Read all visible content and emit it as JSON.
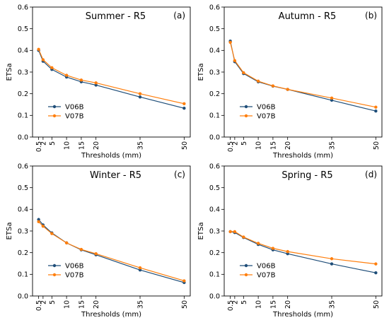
{
  "colors": {
    "V06B": "#1f4e79",
    "V07B": "#ff7f0e",
    "axes": "#000000",
    "background": "#ffffff"
  },
  "chart_data": [
    {
      "type": "line",
      "title": "Summer - R5",
      "tag": "(a)",
      "xlabel": "Thresholds (mm)",
      "ylabel": "ETSa",
      "x": [
        0.5,
        2,
        5,
        10,
        15,
        20,
        35,
        50
      ],
      "xticks": [
        "0.5",
        "2",
        "5",
        "10",
        "15",
        "20",
        "35",
        "50"
      ],
      "ylim": [
        0,
        0.6
      ],
      "yticks": [
        "0.0",
        "0.1",
        "0.2",
        "0.3",
        "0.4",
        "0.5",
        "0.6"
      ],
      "grid": false,
      "legend": "lower-left",
      "series": [
        {
          "name": "V06B",
          "values": [
            0.4,
            0.35,
            0.312,
            0.277,
            0.255,
            0.24,
            0.185,
            0.133
          ]
        },
        {
          "name": "V07B",
          "values": [
            0.405,
            0.357,
            0.32,
            0.285,
            0.263,
            0.25,
            0.2,
            0.154
          ]
        }
      ]
    },
    {
      "type": "line",
      "title": "Autumn - R5",
      "tag": "(b)",
      "xlabel": "Thresholds (mm)",
      "ylabel": "ETSa",
      "x": [
        0.5,
        2,
        5,
        10,
        15,
        20,
        35,
        50
      ],
      "xticks": [
        "0.5",
        "2",
        "5",
        "10",
        "15",
        "20",
        "35",
        "50"
      ],
      "ylim": [
        0,
        0.6
      ],
      "yticks": [
        "0.0",
        "0.1",
        "0.2",
        "0.3",
        "0.4",
        "0.5",
        "0.6"
      ],
      "grid": false,
      "legend": "lower-left",
      "series": [
        {
          "name": "V06B",
          "values": [
            0.443,
            0.348,
            0.293,
            0.255,
            0.235,
            0.22,
            0.17,
            0.12
          ]
        },
        {
          "name": "V07B",
          "values": [
            0.437,
            0.353,
            0.297,
            0.258,
            0.236,
            0.22,
            0.18,
            0.138
          ]
        }
      ]
    },
    {
      "type": "line",
      "title": "Winter - R5",
      "tag": "(c)",
      "xlabel": "Thresholds (mm)",
      "ylabel": "ETSa",
      "x": [
        0.5,
        2,
        5,
        10,
        15,
        20,
        35,
        50
      ],
      "xticks": [
        "0.5",
        "2",
        "5",
        "10",
        "15",
        "20",
        "35",
        "50"
      ],
      "ylim": [
        0,
        0.6
      ],
      "yticks": [
        "0.0",
        "0.1",
        "0.2",
        "0.3",
        "0.4",
        "0.5",
        "0.6"
      ],
      "grid": false,
      "legend": "lower-left",
      "series": [
        {
          "name": "V06B",
          "values": [
            0.353,
            0.328,
            0.291,
            0.245,
            0.213,
            0.19,
            0.12,
            0.062
          ]
        },
        {
          "name": "V07B",
          "values": [
            0.343,
            0.322,
            0.288,
            0.245,
            0.215,
            0.195,
            0.13,
            0.07
          ]
        }
      ]
    },
    {
      "type": "line",
      "title": "Spring - R5",
      "tag": "(d)",
      "xlabel": "Thresholds (mm)",
      "ylabel": "ETSa",
      "x": [
        0.5,
        2,
        5,
        10,
        15,
        20,
        35,
        50
      ],
      "xticks": [
        "0.5",
        "2",
        "5",
        "10",
        "15",
        "20",
        "35",
        "50"
      ],
      "ylim": [
        0,
        0.6
      ],
      "yticks": [
        "0.0",
        "0.1",
        "0.2",
        "0.3",
        "0.4",
        "0.5",
        "0.6"
      ],
      "grid": false,
      "legend": "lower-left",
      "series": [
        {
          "name": "V06B",
          "values": [
            0.297,
            0.293,
            0.27,
            0.238,
            0.213,
            0.195,
            0.148,
            0.107
          ]
        },
        {
          "name": "V07B",
          "values": [
            0.297,
            0.297,
            0.272,
            0.243,
            0.22,
            0.205,
            0.172,
            0.148
          ]
        }
      ]
    }
  ]
}
